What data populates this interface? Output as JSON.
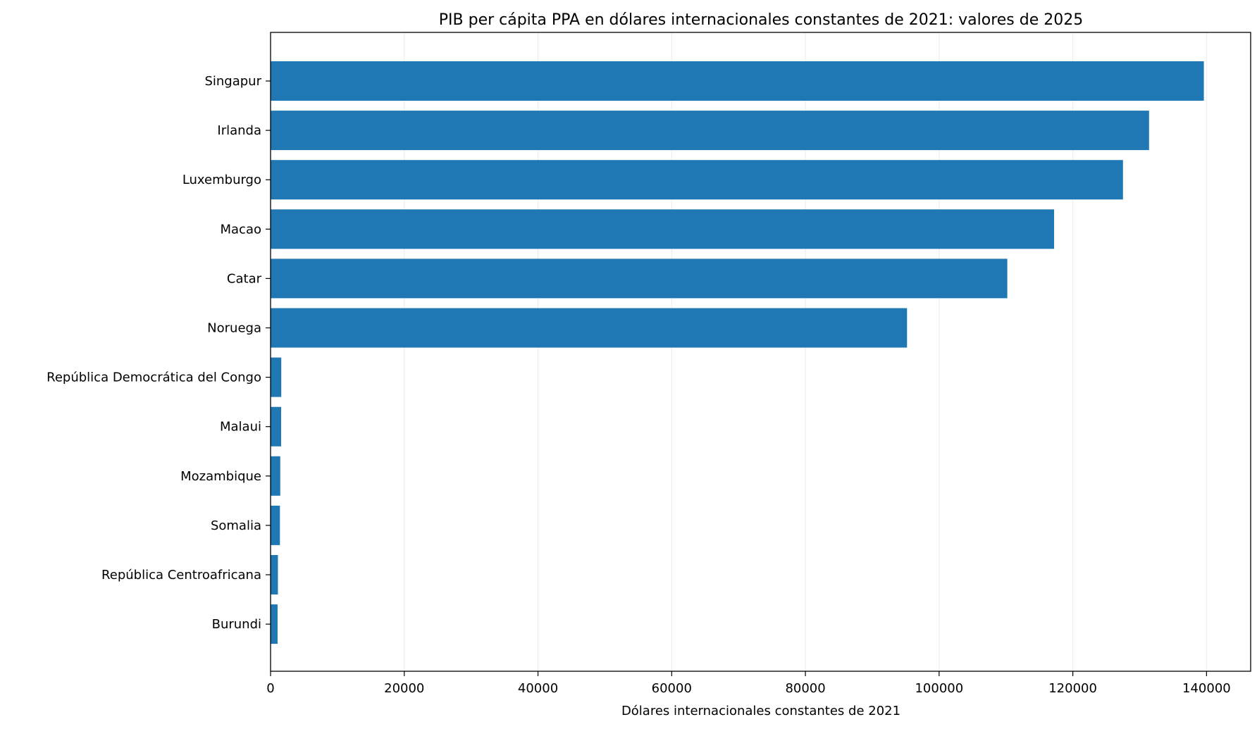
{
  "chart_data": {
    "type": "bar",
    "orientation": "horizontal",
    "title": "PIB per cápita PPA en dólares internacionales constantes de 2021: valores de 2025",
    "xlabel": "Dólares internacionales constantes de 2021",
    "ylabel": "",
    "categories": [
      "Singapur",
      "Irlanda",
      "Luxemburgo",
      "Macao",
      "Catar",
      "Noruega",
      "República Democrática del Congo",
      "Malaui",
      "Mozambique",
      "Somalia",
      "República Centroafricana",
      "Burundi"
    ],
    "values": [
      139600,
      131400,
      127500,
      117200,
      110200,
      95200,
      1600,
      1580,
      1450,
      1400,
      1100,
      1050
    ],
    "xlim": [
      0,
      146600
    ],
    "xticks": [
      0,
      20000,
      40000,
      60000,
      80000,
      100000,
      120000,
      140000
    ],
    "xtick_labels": [
      "0",
      "20000",
      "40000",
      "60000",
      "80000",
      "100000",
      "120000",
      "140000"
    ],
    "grid": "vertical",
    "bar_color": "#1f77b4",
    "grid_color": "#ebebeb"
  }
}
